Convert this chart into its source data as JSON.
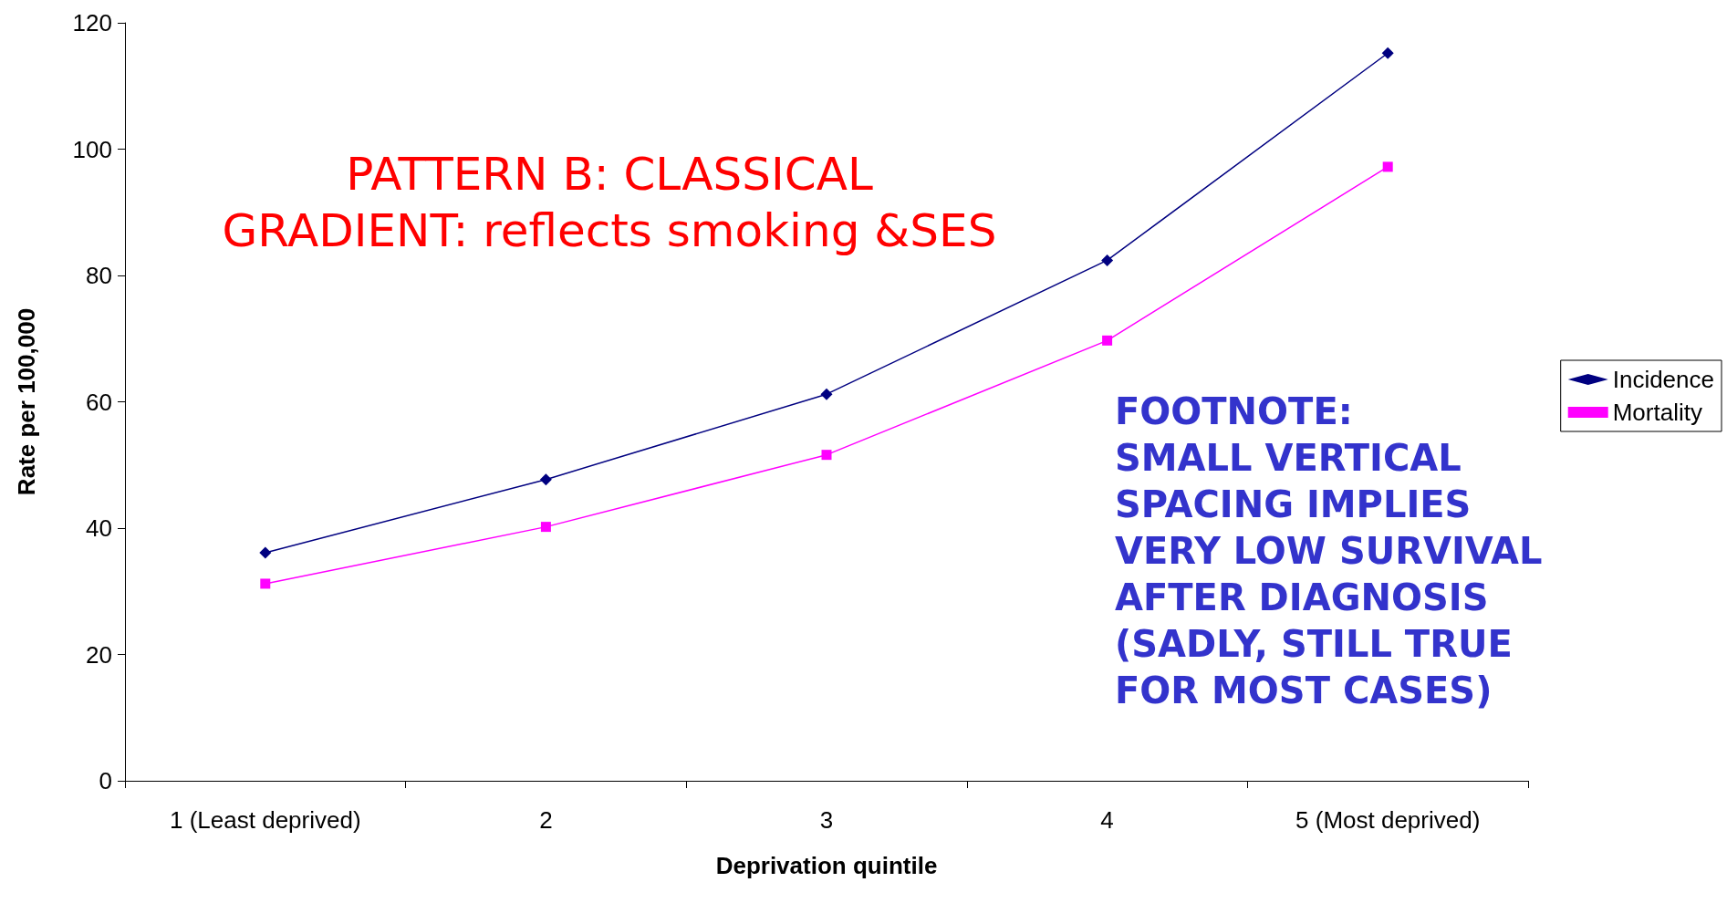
{
  "chart_data": {
    "type": "line",
    "xlabel": "Deprivation quintile",
    "ylabel": "Rate per 100,000",
    "categories": [
      "1 (Least deprived)",
      "2",
      "3",
      "4",
      "5 (Most deprived)"
    ],
    "series": [
      {
        "name": "Incidence",
        "color": "#000080",
        "marker": "diamond",
        "values": [
          36.1,
          47.7,
          61.2,
          82.4,
          115.2
        ]
      },
      {
        "name": "Mortality",
        "color": "#ff00ff",
        "marker": "square",
        "values": [
          31.2,
          40.2,
          51.6,
          69.7,
          97.2
        ]
      }
    ],
    "ylim": [
      0,
      120
    ],
    "yticks": [
      0,
      20,
      40,
      60,
      80,
      100,
      120
    ],
    "grid": false,
    "legend": "right",
    "line_style": "solid",
    "annotations": [
      "PATTERN B: CLASSICAL\nGRADIENT: reflects smoking &SES",
      "FOOTNOTE:\nSMALL VERTICAL\nSPACING IMPLIES\nVERY LOW SURVIVAL\nAFTER DIAGNOSIS\n(SADLY, STILL TRUE\nFOR MOST CASES)"
    ]
  }
}
